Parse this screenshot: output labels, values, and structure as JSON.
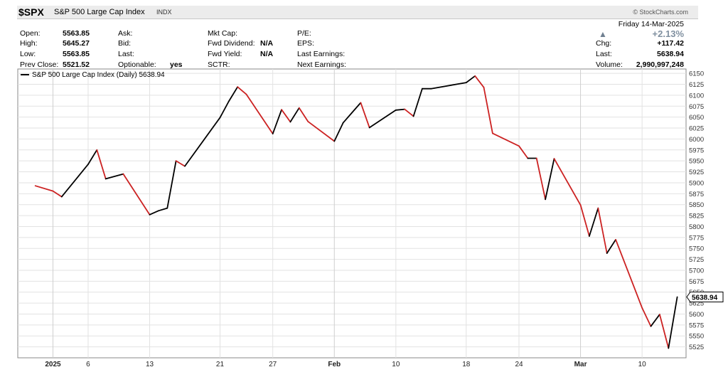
{
  "header": {
    "symbol": "$SPX",
    "name": "S&P 500 Large Cap Index",
    "exchange": "INDX",
    "logo": "© StockCharts.com",
    "date": "Friday 14-Mar-2025",
    "pct_change": "+2.13%",
    "pct_change_color": "#8899aa",
    "up_arrow_icon": "triangle-up-icon"
  },
  "quote": {
    "open_label": "Open:",
    "open": "5563.85",
    "high_label": "High:",
    "high": "5645.27",
    "low_label": "Low:",
    "low": "5563.85",
    "prev_close_label": "Prev Close:",
    "prev_close": "5521.52",
    "ask_label": "Ask:",
    "bid_label": "Bid:",
    "last_label_mid": "Last:",
    "optionable_label": "Optionable:",
    "optionable": "yes",
    "mktcap_label": "Mkt Cap:",
    "fwd_div_label": "Fwd Dividend:",
    "fwd_div": "N/A",
    "fwd_yield_label": "Fwd Yield:",
    "fwd_yield": "N/A",
    "sctr_label": "SCTR:",
    "pe_label": "P/E:",
    "eps_label": "EPS:",
    "last_earnings_label": "Last Earnings:",
    "next_earnings_label": "Next Earnings:",
    "chg_label": "Chg:",
    "chg": "+117.42",
    "last_label": "Last:",
    "last": "5638.94",
    "volume_label": "Volume:",
    "volume": "2,990,997,248"
  },
  "chart_data": {
    "type": "line",
    "legend": "S&P 500 Large Cap Index (Daily) 5638.94",
    "legend_position": "top-left",
    "last_value_label": "5638.94",
    "up_color": "#000000",
    "down_color": "#cc2222",
    "grid": true,
    "ylim": [
      5500,
      6160
    ],
    "yticks": [
      5525,
      5550,
      5575,
      5600,
      5625,
      5650,
      5675,
      5700,
      5725,
      5750,
      5775,
      5800,
      5825,
      5850,
      5875,
      5900,
      5925,
      5950,
      5975,
      6000,
      6025,
      6050,
      6075,
      6100,
      6125,
      6150
    ],
    "x": [
      "2024-12-31",
      "2025-01-02",
      "2025-01-03",
      "2025-01-06",
      "2025-01-07",
      "2025-01-08",
      "2025-01-10",
      "2025-01-13",
      "2025-01-14",
      "2025-01-15",
      "2025-01-16",
      "2025-01-17",
      "2025-01-21",
      "2025-01-22",
      "2025-01-23",
      "2025-01-24",
      "2025-01-27",
      "2025-01-28",
      "2025-01-29",
      "2025-01-30",
      "2025-01-31",
      "2025-02-03",
      "2025-02-04",
      "2025-02-05",
      "2025-02-06",
      "2025-02-07",
      "2025-02-10",
      "2025-02-11",
      "2025-02-12",
      "2025-02-13",
      "2025-02-14",
      "2025-02-18",
      "2025-02-19",
      "2025-02-20",
      "2025-02-21",
      "2025-02-24",
      "2025-02-25",
      "2025-02-26",
      "2025-02-27",
      "2025-02-28",
      "2025-03-03",
      "2025-03-04",
      "2025-03-05",
      "2025-03-06",
      "2025-03-07",
      "2025-03-10",
      "2025-03-11",
      "2025-03-12",
      "2025-03-13",
      "2025-03-14"
    ],
    "values": [
      5893,
      5881,
      5868,
      5942,
      5975,
      5909,
      5920,
      5827,
      5836,
      5842,
      5950,
      5938,
      6049,
      6086,
      6119,
      6102,
      6012,
      6067,
      6039,
      6071,
      6040,
      5995,
      6037,
      6060,
      6083,
      6026,
      6066,
      6068,
      6052,
      6115,
      6115,
      6129,
      6144,
      6118,
      6013,
      5984,
      5956,
      5956,
      5862,
      5955,
      5849,
      5778,
      5842,
      5739,
      5770,
      5614,
      5572,
      5599,
      5522,
      5639
    ],
    "x_tick_labels": [
      {
        "date": "2025-01-02",
        "label": "2025",
        "bold": true
      },
      {
        "date": "2025-01-06",
        "label": "6"
      },
      {
        "date": "2025-01-13",
        "label": "13"
      },
      {
        "date": "2025-01-21",
        "label": "21"
      },
      {
        "date": "2025-01-27",
        "label": "27"
      },
      {
        "date": "2025-02-03",
        "label": "Feb",
        "bold": true
      },
      {
        "date": "2025-02-10",
        "label": "10"
      },
      {
        "date": "2025-02-18",
        "label": "18"
      },
      {
        "date": "2025-02-24",
        "label": "24"
      },
      {
        "date": "2025-03-03",
        "label": "Mar",
        "bold": true
      },
      {
        "date": "2025-03-10",
        "label": "10"
      }
    ]
  }
}
